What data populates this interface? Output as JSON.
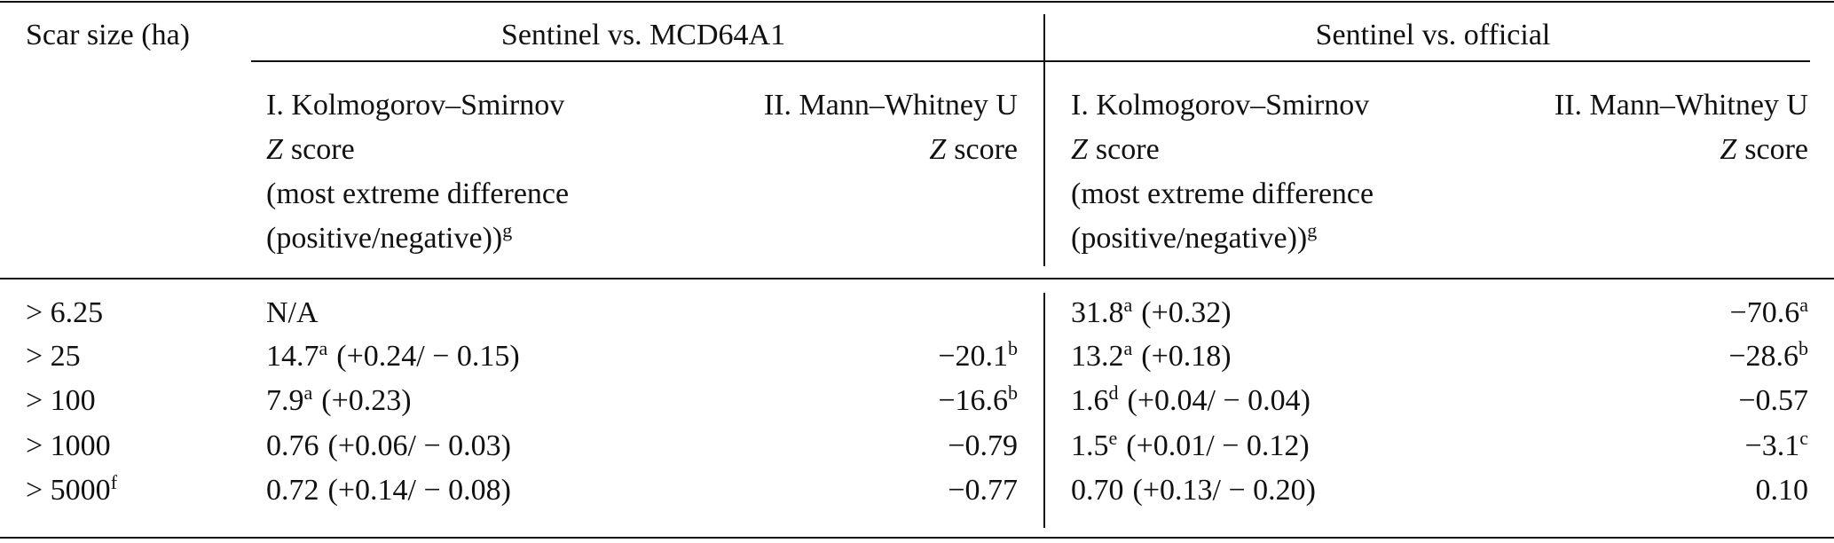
{
  "header": {
    "scar_size": "Scar size (ha)",
    "groups": [
      {
        "name": "Sentinel vs. MCD64A1",
        "tests": [
          {
            "title": "I. Kolmogorov–Smirnov",
            "z_symbol": "Z",
            "z_label": "score",
            "notes": [
              "(most extreme difference",
              "(positive/negative))"
            ],
            "note_sup": "g"
          },
          {
            "title": "II. Mann–Whitney U",
            "z_symbol": "Z",
            "z_label": "score"
          }
        ]
      },
      {
        "name": "Sentinel vs. official",
        "tests": [
          {
            "title": "I. Kolmogorov–Smirnov",
            "z_symbol": "Z",
            "z_label": "score",
            "notes": [
              "(most extreme difference",
              "(positive/negative))"
            ],
            "note_sup": "g"
          },
          {
            "title": "II. Mann–Whitney U",
            "z_symbol": "Z",
            "z_label": "score"
          }
        ]
      }
    ]
  },
  "rows": [
    {
      "label": "> 6.25",
      "cells": [
        {
          "main": "N/A"
        },
        null,
        {
          "main": "31.8",
          "sup": "a",
          "tail": "(+0.32)"
        },
        {
          "main": "−70.6",
          "sup": "a"
        }
      ]
    },
    {
      "label": "> 25",
      "cells": [
        {
          "main": "14.7",
          "sup": "a",
          "tail": "(+0.24/ − 0.15)"
        },
        {
          "main": "−20.1",
          "sup": "b"
        },
        {
          "main": "13.2",
          "sup": "a",
          "tail": "(+0.18)"
        },
        {
          "main": "−28.6",
          "sup": "b"
        }
      ]
    },
    {
      "label": "> 100",
      "cells": [
        {
          "main": "7.9",
          "sup": "a",
          "tail": "(+0.23)"
        },
        {
          "main": "−16.6",
          "sup": "b"
        },
        {
          "main": "1.6",
          "sup": "d",
          "tail": "(+0.04/ − 0.04)"
        },
        {
          "main": "−0.57"
        }
      ]
    },
    {
      "label": "> 1000",
      "cells": [
        {
          "main": "0.76",
          "tail": "(+0.06/ − 0.03)"
        },
        {
          "main": "−0.79"
        },
        {
          "main": "1.5",
          "sup": "e",
          "tail": "(+0.01/ − 0.12)"
        },
        {
          "main": "−3.1",
          "sup": "c"
        }
      ]
    },
    {
      "label": "> 5000",
      "label_sup": "f",
      "cells": [
        {
          "main": "0.72",
          "tail": "(+0.14/ − 0.08)"
        },
        {
          "main": "−0.77"
        },
        {
          "main": "0.70",
          "tail": "(+0.13/ − 0.20)"
        },
        {
          "main": "0.10"
        }
      ]
    }
  ]
}
